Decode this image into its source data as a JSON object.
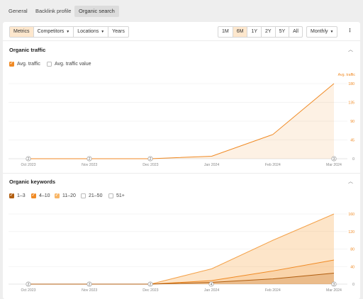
{
  "nav": {
    "tabs": [
      "General",
      "Backlink profile",
      "Organic search"
    ],
    "active": 2
  },
  "toolbar": {
    "left": [
      {
        "label": "Metrics",
        "active": true
      },
      {
        "label": "Competitors",
        "dropdown": true
      },
      {
        "label": "Locations",
        "dropdown": true
      },
      {
        "label": "Years"
      }
    ],
    "ranges": [
      "1M",
      "6M",
      "1Y",
      "2Y",
      "5Y",
      "All"
    ],
    "active_range": "6M",
    "interval": "Monthly",
    "more_icon": "vertical-dots-icon"
  },
  "traffic": {
    "title": "Organic traffic",
    "legend": [
      {
        "label": "Avg. traffic",
        "checked": true
      },
      {
        "label": "Avg. traffic value",
        "checked": false
      }
    ],
    "chart_data": {
      "type": "area",
      "x": [
        "Oct 2023",
        "Nov 2023",
        "Dec 2023",
        "Jan 2024",
        "Feb 2024",
        "Mar 2024"
      ],
      "series": [
        {
          "name": "Avg. traffic",
          "values": [
            0,
            0,
            0,
            6,
            58,
            180
          ]
        }
      ],
      "ylabel": "Avg. traffic",
      "yticks": [
        180,
        135,
        90,
        45,
        0
      ],
      "ylim": [
        0,
        180
      ],
      "color": "#f08a24",
      "markers": [
        "2",
        "2",
        "2",
        "3"
      ]
    }
  },
  "keywords": {
    "title": "Organic keywords",
    "legend": [
      {
        "label": "1–3",
        "checked": true,
        "color": "#b15e10"
      },
      {
        "label": "4–10",
        "checked": true,
        "color": "#f08a24"
      },
      {
        "label": "11–20",
        "checked": true,
        "color": "#f8b565"
      },
      {
        "label": "21–50",
        "checked": false
      },
      {
        "label": "51+",
        "checked": false
      }
    ],
    "chart_data": {
      "type": "area",
      "x": [
        "Oct 2023",
        "Nov 2023",
        "Dec 2023",
        "Jan 2024",
        "Feb 2024",
        "Mar 2024"
      ],
      "series": [
        {
          "name": "1–3",
          "values": [
            0,
            0,
            0,
            4,
            12,
            25
          ]
        },
        {
          "name": "4–10",
          "values": [
            0,
            0,
            0,
            8,
            30,
            55
          ]
        },
        {
          "name": "11–20",
          "values": [
            0,
            0,
            0,
            35,
            100,
            160
          ]
        }
      ],
      "yticks": [
        160,
        120,
        80,
        40,
        0
      ],
      "ylim": [
        0,
        160
      ],
      "markers": [
        "2",
        "2",
        "2",
        "4",
        "3"
      ]
    }
  }
}
